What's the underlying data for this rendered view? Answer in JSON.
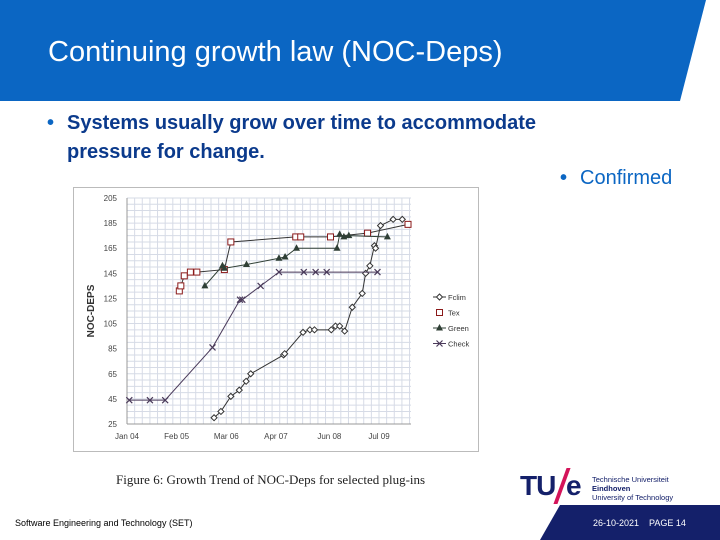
{
  "slide": {
    "title": "Continuing growth law (NOC-Deps)",
    "bullets": [
      "Systems usually grow over time to accommodate",
      "pressure for change."
    ],
    "side_bullet": "Confirmed",
    "caption": "Figure 6:  Growth Trend of NOC-Deps for selected plug-ins"
  },
  "footer": {
    "left": "Software Engineering and Technology (SET)",
    "date": "26-10-2021",
    "page": "PAGE 14",
    "logo": {
      "mark_tu": "TU",
      "mark_e": "e",
      "line1": "Technische Universiteit",
      "line2": "Eindhoven",
      "line3": "University of Technology"
    }
  },
  "colors": {
    "header": "#0b66c3",
    "footer": "#14206a"
  },
  "chart_data": {
    "type": "line",
    "title": "",
    "ylabel": "NOC-DEPS",
    "xlabel": "",
    "x_unit": "months since Jan 04",
    "xticks": [
      {
        "x": 0,
        "label": "Jan 04"
      },
      {
        "x": 13,
        "label": "Feb 05"
      },
      {
        "x": 26,
        "label": "Mar 06"
      },
      {
        "x": 39,
        "label": "Apr 07"
      },
      {
        "x": 53,
        "label": "Jun 08"
      },
      {
        "x": 66,
        "label": "Jul 09"
      }
    ],
    "yticks": [
      25,
      45,
      65,
      85,
      105,
      125,
      145,
      165,
      185,
      205
    ],
    "ylim": [
      25,
      205
    ],
    "xlim": [
      0,
      74
    ],
    "grid": true,
    "legend": "right",
    "series": [
      {
        "name": "Fclim",
        "marker": "diamond",
        "color": "#333",
        "points": [
          [
            22.8,
            30
          ],
          [
            24.6,
            35
          ],
          [
            27.2,
            47
          ],
          [
            29.4,
            52
          ],
          [
            31.2,
            59
          ],
          [
            32.4,
            65
          ],
          [
            41,
            80
          ],
          [
            41.3,
            81
          ],
          [
            46.1,
            98
          ],
          [
            47.9,
            100
          ],
          [
            49.1,
            100
          ],
          [
            53.5,
            100
          ],
          [
            54.6,
            103
          ],
          [
            55.7,
            103
          ],
          [
            57,
            99
          ],
          [
            59,
            118
          ],
          [
            61.6,
            129
          ],
          [
            62.5,
            145
          ],
          [
            63.6,
            151
          ],
          [
            64.8,
            167
          ],
          [
            65.1,
            165
          ],
          [
            66.4,
            183
          ],
          [
            69.7,
            188
          ],
          [
            72.1,
            188
          ]
        ]
      },
      {
        "name": "Tex",
        "marker": "square",
        "color": "#333",
        "points": [
          [
            13.7,
            131
          ],
          [
            14.1,
            135
          ],
          [
            15,
            143
          ],
          [
            16.6,
            146
          ],
          [
            18.3,
            146
          ],
          [
            25.5,
            148
          ],
          [
            27.2,
            170
          ],
          [
            44.2,
            174
          ],
          [
            45.5,
            174
          ],
          [
            53.3,
            174
          ],
          [
            63,
            177
          ],
          [
            73.6,
            184
          ]
        ]
      },
      {
        "name": "Green",
        "marker": "triangle",
        "color": "#2f3f35",
        "points": [
          [
            20.4,
            135
          ],
          [
            25,
            151
          ],
          [
            25.5,
            149
          ],
          [
            31.3,
            152
          ],
          [
            39.8,
            157
          ],
          [
            41.4,
            158
          ],
          [
            44.4,
            165
          ],
          [
            55,
            165
          ],
          [
            55.7,
            176
          ],
          [
            56.8,
            174
          ],
          [
            58.1,
            175
          ],
          [
            68.2,
            174
          ]
        ]
      },
      {
        "name": "Check",
        "marker": "cross",
        "color": "#4a3a5a",
        "points": [
          [
            0.6,
            44
          ],
          [
            6,
            44
          ],
          [
            10,
            44
          ],
          [
            22.4,
            86
          ],
          [
            29.6,
            124
          ],
          [
            30.2,
            124
          ],
          [
            35,
            135
          ],
          [
            39.8,
            146
          ],
          [
            46.3,
            146
          ],
          [
            49.4,
            146
          ],
          [
            52.3,
            146
          ],
          [
            65.6,
            146
          ]
        ]
      }
    ]
  }
}
